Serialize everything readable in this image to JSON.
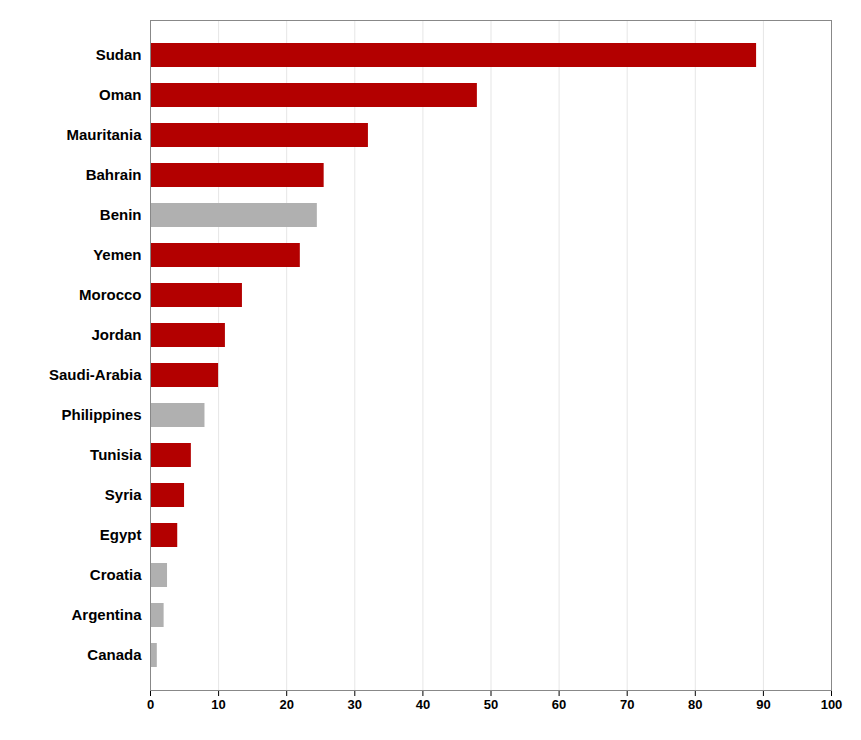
{
  "chart_data": {
    "type": "bar",
    "orientation": "horizontal",
    "categories": [
      "Canada",
      "Argentina",
      "Croatia",
      "Egypt",
      "Syria",
      "Tunisia",
      "Philippines",
      "Saudi-Arabia",
      "Jordan",
      "Morocco",
      "Yemen",
      "Benin",
      "Bahrain",
      "Mauritania",
      "Oman",
      "Sudan"
    ],
    "values": [
      1.0,
      2.0,
      2.5,
      4.0,
      5.0,
      6.0,
      8.0,
      10.0,
      11.0,
      13.5,
      22.0,
      24.5,
      25.5,
      32.0,
      48.0,
      89.0
    ],
    "colors": [
      "#b0b0b0",
      "#b0b0b0",
      "#b0b0b0",
      "#b30000",
      "#b30000",
      "#b30000",
      "#b0b0b0",
      "#b30000",
      "#b30000",
      "#b30000",
      "#b30000",
      "#b0b0b0",
      "#b30000",
      "#b30000",
      "#b30000",
      "#b30000"
    ],
    "xlim": [
      0,
      100
    ],
    "xticks": [
      0,
      10,
      20,
      30,
      40,
      50,
      60,
      70,
      80,
      90,
      100
    ],
    "grid": true
  }
}
